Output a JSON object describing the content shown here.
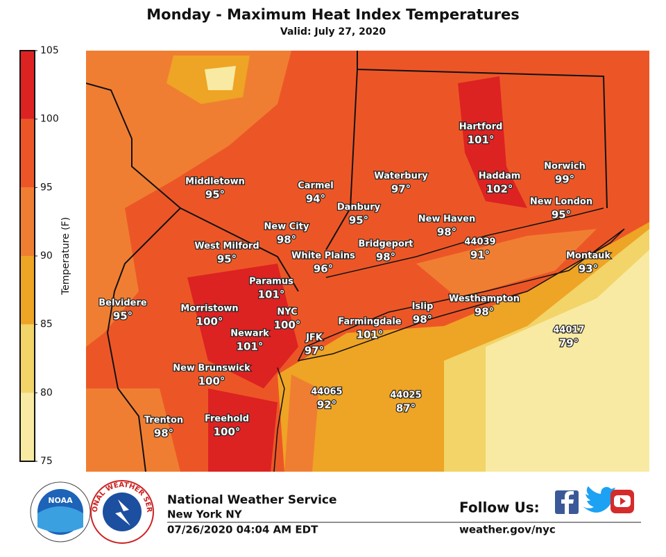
{
  "header": {
    "title": "Monday - Maximum Heat Index Temperatures",
    "subtitle": "Valid: July 27, 2020"
  },
  "colorbar": {
    "label": "Temperature (F)",
    "ticks": [
      75,
      80,
      85,
      90,
      95,
      100,
      105
    ],
    "colors": [
      "#f8eaa2",
      "#f2d468",
      "#eea424",
      "#f07e32",
      "#ec5626",
      "#dd2222"
    ]
  },
  "stations": [
    {
      "name": "Middletown",
      "temp": "95°"
    },
    {
      "name": "Carmel",
      "temp": "94°"
    },
    {
      "name": "Waterbury",
      "temp": "97°"
    },
    {
      "name": "Hartford",
      "temp": "101°"
    },
    {
      "name": "Haddam",
      "temp": "102°"
    },
    {
      "name": "Norwich",
      "temp": "99°"
    },
    {
      "name": "Danbury",
      "temp": "95°"
    },
    {
      "name": "New City",
      "temp": "98°"
    },
    {
      "name": "New Haven",
      "temp": "98°"
    },
    {
      "name": "New London",
      "temp": "95°"
    },
    {
      "name": "West Milford",
      "temp": "95°"
    },
    {
      "name": "White Plains",
      "temp": "96°"
    },
    {
      "name": "Bridgeport",
      "temp": "98°"
    },
    {
      "name": "44039",
      "temp": "91°"
    },
    {
      "name": "Montauk",
      "temp": "93°"
    },
    {
      "name": "Paramus",
      "temp": "101°"
    },
    {
      "name": "Belvidere",
      "temp": "95°"
    },
    {
      "name": "Morristown",
      "temp": "100°"
    },
    {
      "name": "NYC",
      "temp": "100°"
    },
    {
      "name": "Islip",
      "temp": "98°"
    },
    {
      "name": "Westhampton",
      "temp": "98°"
    },
    {
      "name": "44017",
      "temp": "79°"
    },
    {
      "name": "Newark",
      "temp": "101°"
    },
    {
      "name": "JFK",
      "temp": "97°"
    },
    {
      "name": "Farmingdale",
      "temp": "101°"
    },
    {
      "name": "New Brunswick",
      "temp": "100°"
    },
    {
      "name": "44065",
      "temp": "92°"
    },
    {
      "name": "44025",
      "temp": "87°"
    },
    {
      "name": "Trenton",
      "temp": "98°"
    },
    {
      "name": "Freehold",
      "temp": "100°"
    }
  ],
  "footer": {
    "office": "National Weather Service",
    "location": "New York NY",
    "issued": "07/26/2020 04:04 AM EDT",
    "follow": "Follow Us:",
    "url": "weather.gov/nyc",
    "noaa_logo": "NOAA",
    "nws_logo": "NATIONAL WEATHER SERVICE"
  }
}
